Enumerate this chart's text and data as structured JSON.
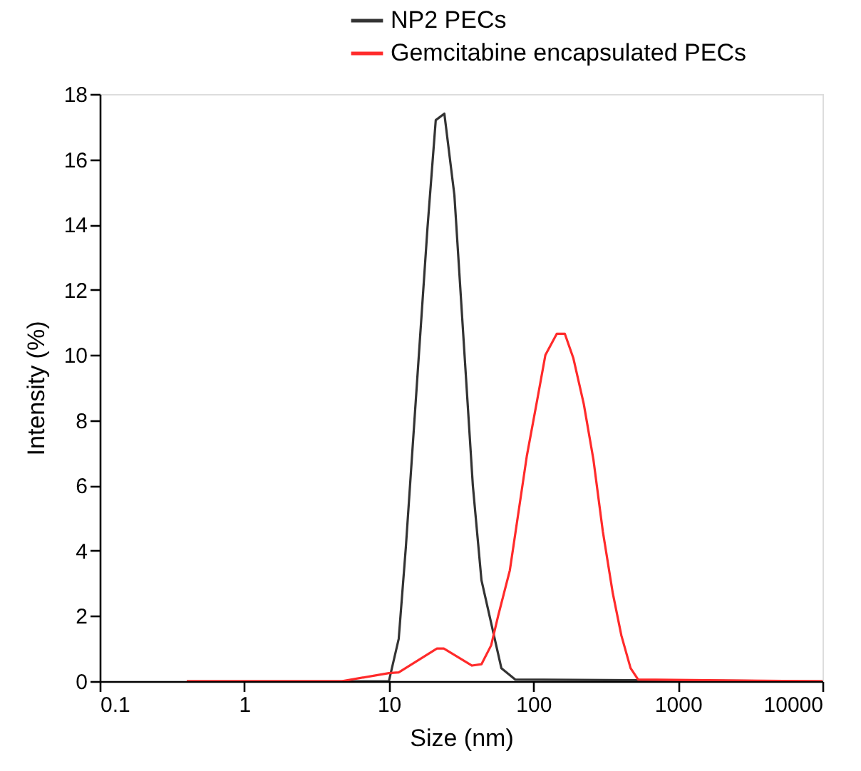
{
  "chart_data": {
    "type": "line",
    "xlabel": "Size (nm)",
    "ylabel": "Intensity (%)",
    "log": "x",
    "xlim": [
      0.1,
      10000
    ],
    "xticks": [
      0.1,
      1,
      10,
      100,
      1000,
      10000
    ],
    "ylim": [
      0,
      18
    ],
    "yticks": [
      0,
      2,
      4,
      6,
      8,
      10,
      12,
      14,
      16,
      18
    ],
    "grid": false,
    "legend": "top",
    "marker": "none",
    "line_style": "solid",
    "series": [
      {
        "name": "NP2 PECs",
        "color": "#333333",
        "x": [
          0.4,
          10.0,
          11.7,
          13.1,
          18.5,
          21.1,
          24.2,
          28.4,
          38.1,
          43.7,
          60,
          75,
          10000
        ],
        "values": [
          0,
          0,
          1.3,
          4.1,
          13.9,
          17.2,
          17.4,
          14.9,
          6.0,
          3.1,
          0.4,
          0.05,
          0
        ]
      },
      {
        "name": "Gemcitabine encapsulated PECs",
        "color": "#ff2a2a",
        "x": [
          0.4,
          4.7,
          10.0,
          11.7,
          21.5,
          24,
          37.6,
          43.7,
          51,
          57,
          68.7,
          90,
          106,
          121,
          145,
          165,
          189,
          223,
          260,
          302,
          354,
          406,
          470,
          530,
          10000
        ],
        "values": [
          0,
          0,
          0.25,
          0.27,
          1.0,
          1.0,
          0.48,
          0.52,
          1.1,
          2.0,
          3.4,
          6.9,
          8.6,
          10.0,
          10.65,
          10.65,
          9.9,
          8.5,
          6.8,
          4.6,
          2.7,
          1.4,
          0.4,
          0.05,
          0
        ]
      }
    ]
  }
}
